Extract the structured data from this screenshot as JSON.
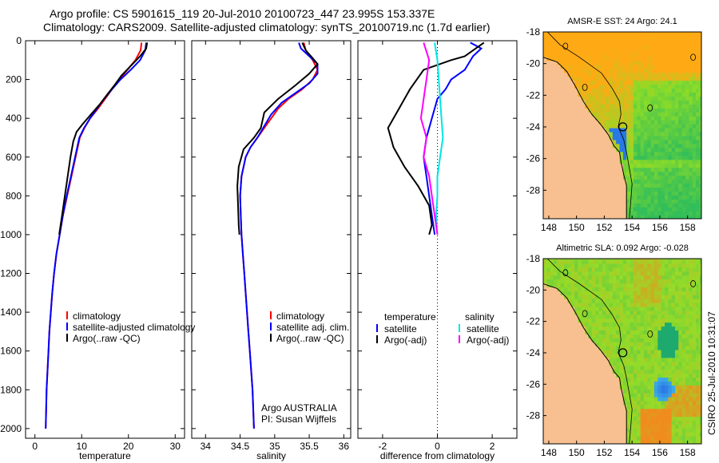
{
  "header": {
    "line1": "Argo profile: CS 5901615_119 20-Jul-2010 20100723_447 23.995S 153.337E",
    "line2": "Climatology: CARS2009. Satellite-adjusted climatology: synTS_20100719.nc (1.7d earlier)"
  },
  "side_label": "CSIRO 25-Jul-2010 10:31:07",
  "colors": {
    "red": "#ff0000",
    "blue": "#0000ff",
    "black": "#000000",
    "cyan": "#00e5e5",
    "magenta": "#ff00ff",
    "land": "#f8c090"
  },
  "chart_data": [
    {
      "type": "line",
      "xlabel": "temperature",
      "ylabel": "",
      "xlim": [
        -2,
        32
      ],
      "ylim": [
        2050,
        0
      ],
      "y_reversed": true,
      "xticks": [
        0,
        10,
        20,
        30
      ],
      "yticks": [
        0,
        200,
        400,
        600,
        800,
        1000,
        1200,
        1400,
        1600,
        1800,
        2000
      ],
      "legend": {
        "placement": "lower-middle",
        "entries": [
          "climatology",
          "satellite-adjusted climatology",
          "Argo(..raw -QC)"
        ]
      },
      "series": [
        {
          "name": "climatology",
          "color": "red",
          "points": [
            [
              22.8,
              10
            ],
            [
              22.6,
              50
            ],
            [
              21.5,
              100
            ],
            [
              19.8,
              150
            ],
            [
              18.0,
              200
            ],
            [
              16.5,
              250
            ],
            [
              15.0,
              300
            ],
            [
              13.5,
              350
            ],
            [
              11.8,
              400
            ],
            [
              10.6,
              450
            ],
            [
              9.6,
              500
            ],
            [
              8.7,
              600
            ],
            [
              7.8,
              700
            ],
            [
              6.9,
              800
            ],
            [
              6.0,
              900
            ],
            [
              5.3,
              1000
            ],
            [
              4.6,
              1100
            ],
            [
              4.1,
              1200
            ],
            [
              3.7,
              1300
            ],
            [
              3.4,
              1400
            ],
            [
              3.1,
              1500
            ],
            [
              2.9,
              1600
            ],
            [
              2.7,
              1700
            ],
            [
              2.5,
              1800
            ],
            [
              2.4,
              1900
            ],
            [
              2.3,
              2000
            ]
          ]
        },
        {
          "name": "satellite-adjusted climatology",
          "color": "blue",
          "points": [
            [
              23.8,
              10
            ],
            [
              23.6,
              50
            ],
            [
              22.5,
              100
            ],
            [
              20.5,
              150
            ],
            [
              18.3,
              200
            ],
            [
              16.5,
              250
            ],
            [
              14.8,
              300
            ],
            [
              13.3,
              350
            ],
            [
              11.8,
              400
            ],
            [
              10.5,
              450
            ],
            [
              9.5,
              500
            ],
            [
              8.6,
              600
            ],
            [
              7.7,
              700
            ],
            [
              6.8,
              800
            ],
            [
              6.0,
              900
            ],
            [
              5.3,
              1000
            ],
            [
              4.6,
              1100
            ],
            [
              4.1,
              1200
            ],
            [
              3.7,
              1300
            ],
            [
              3.4,
              1400
            ],
            [
              3.1,
              1500
            ],
            [
              2.9,
              1600
            ],
            [
              2.7,
              1700
            ],
            [
              2.5,
              1800
            ],
            [
              2.4,
              1900
            ],
            [
              2.3,
              2000
            ]
          ]
        },
        {
          "name": "Argo(..raw -QC)",
          "color": "black",
          "points": [
            [
              24.0,
              10
            ],
            [
              23.8,
              40
            ],
            [
              22.5,
              80
            ],
            [
              20.5,
              130
            ],
            [
              18.5,
              180
            ],
            [
              17.0,
              230
            ],
            [
              15.4,
              280
            ],
            [
              13.8,
              330
            ],
            [
              12.0,
              380
            ],
            [
              10.2,
              430
            ],
            [
              8.9,
              470
            ],
            [
              8.2,
              520
            ],
            [
              7.6,
              600
            ],
            [
              7.0,
              700
            ],
            [
              6.4,
              800
            ],
            [
              5.8,
              900
            ],
            [
              5.2,
              1000
            ]
          ]
        }
      ]
    },
    {
      "type": "line",
      "xlabel": "salinity",
      "ylabel": "",
      "xlim": [
        33.8,
        36.1
      ],
      "ylim": [
        2050,
        0
      ],
      "y_reversed": true,
      "xticks": [
        34,
        34.5,
        35,
        35.5,
        36
      ],
      "legend": {
        "placement": "lower-right",
        "entries": [
          "climatology",
          "satellite adj. clim.",
          "Argo(..raw -QC)"
        ]
      },
      "annotation": [
        "Argo AUSTRALIA",
        "PI: Susan Wijffels"
      ],
      "series": [
        {
          "name": "climatology",
          "color": "red",
          "points": [
            [
              35.42,
              10
            ],
            [
              35.45,
              50
            ],
            [
              35.55,
              100
            ],
            [
              35.62,
              150
            ],
            [
              35.55,
              200
            ],
            [
              35.4,
              250
            ],
            [
              35.2,
              300
            ],
            [
              35.05,
              350
            ],
            [
              34.95,
              400
            ],
            [
              34.85,
              450
            ],
            [
              34.75,
              500
            ],
            [
              34.65,
              550
            ],
            [
              34.58,
              600
            ],
            [
              34.52,
              700
            ],
            [
              34.5,
              800
            ],
            [
              34.51,
              900
            ],
            [
              34.52,
              1000
            ],
            [
              34.54,
              1100
            ],
            [
              34.56,
              1200
            ],
            [
              34.58,
              1300
            ],
            [
              34.6,
              1400
            ],
            [
              34.62,
              1500
            ],
            [
              34.64,
              1600
            ],
            [
              34.66,
              1700
            ],
            [
              34.68,
              1800
            ],
            [
              34.69,
              1900
            ],
            [
              34.7,
              2000
            ]
          ]
        },
        {
          "name": "satellite adj. clim.",
          "color": "blue",
          "points": [
            [
              35.35,
              10
            ],
            [
              35.38,
              40
            ],
            [
              35.5,
              80
            ],
            [
              35.62,
              120
            ],
            [
              35.62,
              170
            ],
            [
              35.5,
              220
            ],
            [
              35.3,
              270
            ],
            [
              35.1,
              320
            ],
            [
              34.95,
              380
            ],
            [
              34.85,
              440
            ],
            [
              34.75,
              500
            ],
            [
              34.65,
              550
            ],
            [
              34.58,
              600
            ],
            [
              34.52,
              700
            ],
            [
              34.5,
              800
            ],
            [
              34.51,
              900
            ],
            [
              34.52,
              1000
            ],
            [
              34.54,
              1100
            ],
            [
              34.56,
              1200
            ],
            [
              34.58,
              1300
            ],
            [
              34.6,
              1400
            ],
            [
              34.62,
              1500
            ],
            [
              34.64,
              1600
            ],
            [
              34.66,
              1700
            ],
            [
              34.68,
              1800
            ],
            [
              34.69,
              1900
            ],
            [
              34.7,
              2000
            ]
          ]
        },
        {
          "name": "Argo(..raw -QC)",
          "color": "black",
          "points": [
            [
              35.4,
              10
            ],
            [
              35.45,
              50
            ],
            [
              35.55,
              90
            ],
            [
              35.62,
              120
            ],
            [
              35.5,
              170
            ],
            [
              35.3,
              230
            ],
            [
              35.05,
              300
            ],
            [
              34.85,
              370
            ],
            [
              34.8,
              450
            ],
            [
              34.7,
              500
            ],
            [
              34.55,
              560
            ],
            [
              34.48,
              650
            ],
            [
              34.46,
              750
            ],
            [
              34.47,
              850
            ],
            [
              34.48,
              950
            ],
            [
              34.49,
              1000
            ]
          ]
        }
      ]
    },
    {
      "type": "line",
      "xlabel": "difference from climatology",
      "ylabel": "",
      "xlim": [
        -2.9,
        2.9
      ],
      "ylim": [
        2050,
        0
      ],
      "y_reversed": true,
      "xticks": [
        -2,
        0,
        2
      ],
      "zero_line": "dotted",
      "legend": {
        "placement": "lower-middle",
        "headers": [
          "temperature",
          "salinity"
        ],
        "entries": [
          "satellite",
          "Argo(-adj)",
          "satellite",
          "Argo(-adj)"
        ]
      },
      "series": [
        {
          "name": "satellite",
          "group": "temperature",
          "color": "blue",
          "points": [
            [
              1.2,
              10
            ],
            [
              1.6,
              40
            ],
            [
              1.3,
              80
            ],
            [
              1.0,
              150
            ],
            [
              0.5,
              200
            ],
            [
              0.3,
              250
            ],
            [
              0.0,
              300
            ],
            [
              -0.2,
              400
            ],
            [
              -0.4,
              500
            ],
            [
              -0.5,
              600
            ],
            [
              -0.4,
              700
            ],
            [
              -0.3,
              800
            ],
            [
              -0.2,
              900
            ],
            [
              -0.1,
              1000
            ]
          ]
        },
        {
          "name": "Argo(-adj)",
          "group": "temperature",
          "color": "black",
          "points": [
            [
              1.7,
              10
            ],
            [
              1.4,
              40
            ],
            [
              1.0,
              80
            ],
            [
              0.5,
              100
            ],
            [
              -0.5,
              150
            ],
            [
              -1.0,
              250
            ],
            [
              -1.4,
              350
            ],
            [
              -1.8,
              450
            ],
            [
              -1.6,
              550
            ],
            [
              -1.2,
              650
            ],
            [
              -0.7,
              750
            ],
            [
              -0.3,
              850
            ],
            [
              -0.2,
              950
            ],
            [
              -0.3,
              1000
            ]
          ]
        },
        {
          "name": "satellite",
          "group": "salinity",
          "color": "cyan",
          "points": [
            [
              -0.1,
              10
            ],
            [
              0.0,
              100
            ],
            [
              0.05,
              200
            ],
            [
              0.1,
              300
            ],
            [
              0.15,
              400
            ],
            [
              0.2,
              500
            ],
            [
              0.1,
              600
            ],
            [
              0.0,
              700
            ],
            [
              0.0,
              800
            ],
            [
              -0.05,
              900
            ],
            [
              0.0,
              1000
            ]
          ]
        },
        {
          "name": "Argo(-adj)",
          "group": "salinity",
          "color": "magenta",
          "points": [
            [
              -0.5,
              10
            ],
            [
              -0.3,
              100
            ],
            [
              -0.4,
              200
            ],
            [
              -0.5,
              300
            ],
            [
              -0.6,
              400
            ],
            [
              -0.4,
              500
            ],
            [
              -0.5,
              600
            ],
            [
              -0.3,
              700
            ],
            [
              -0.2,
              800
            ],
            [
              -0.1,
              900
            ],
            [
              0.0,
              1000
            ]
          ]
        }
      ]
    },
    {
      "type": "heatmap",
      "title": "AMSR-E SST: 24  Argo: 24.1",
      "xlim": [
        147.6,
        159
      ],
      "ylim": [
        -29.8,
        -18
      ],
      "xticks": [
        148,
        150,
        152,
        154,
        156,
        158
      ],
      "yticks": [
        -18,
        -20,
        -22,
        -24,
        -26,
        -28
      ],
      "float_position": {
        "lon": 153.337,
        "lat": -23.995
      },
      "color_by_region": {
        "land": "land",
        "sea": "green-orange field"
      }
    },
    {
      "type": "heatmap",
      "title": "Altimetric SLA: 0.092  Argo: -0.028",
      "xlim": [
        147.6,
        159
      ],
      "ylim": [
        -29.8,
        -18
      ],
      "xticks": [
        148,
        150,
        152,
        154,
        156,
        158
      ],
      "yticks": [
        -18,
        -20,
        -22,
        -24,
        -26,
        -28
      ],
      "float_position": {
        "lon": 153.337,
        "lat": -23.995
      },
      "color_by_region": {
        "land": "land",
        "sea": "green field with blue eddy and orange patches"
      }
    }
  ]
}
